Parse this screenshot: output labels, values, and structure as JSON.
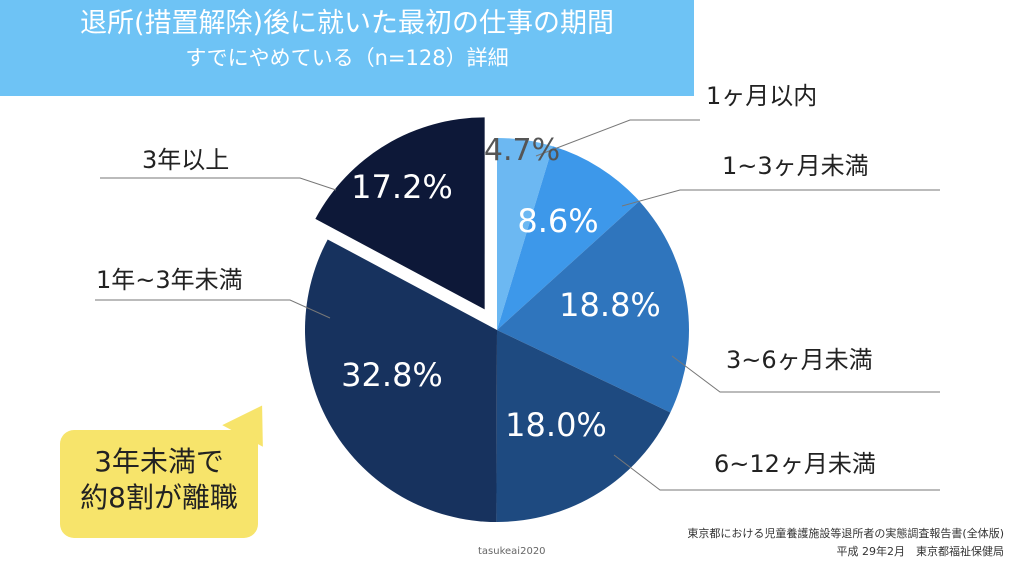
{
  "header": {
    "title": "退所(措置解除)後に就いた最初の仕事の期間",
    "subtitle": "すでにやめている（n=128）詳細"
  },
  "chart_data": {
    "type": "pie",
    "title": "退所(措置解除)後に就いた最初の仕事の期間",
    "subtitle": "すでにやめている（n=128）詳細",
    "slices": [
      {
        "label": "1ヶ月以内",
        "value": 4.7,
        "display": "4.7%",
        "color": "#6cb8f2"
      },
      {
        "label": "1~3ヶ月未満",
        "value": 8.6,
        "display": "8.6%",
        "color": "#3d98ea"
      },
      {
        "label": "3~6ヶ月未満",
        "value": 18.8,
        "display": "18.8%",
        "color": "#2f75bd"
      },
      {
        "label": "6~12ヶ月未満",
        "value": 18.0,
        "display": "18.0%",
        "color": "#1e4a80"
      },
      {
        "label": "1年~3年未満",
        "value": 32.8,
        "display": "32.8%",
        "color": "#17325e"
      },
      {
        "label": "3年以上",
        "value": 17.2,
        "display": "17.2%",
        "color": "#0d1838",
        "exploded": true
      }
    ]
  },
  "callout": {
    "line1": "3年未満で",
    "line2": "約8割が離職"
  },
  "source": {
    "line1": "東京都における児童養護施設等退所者の実態調査報告書(全体版)",
    "line2": "平成 29年2月　東京都福祉保健局"
  },
  "watermark": "tasukeai2020"
}
